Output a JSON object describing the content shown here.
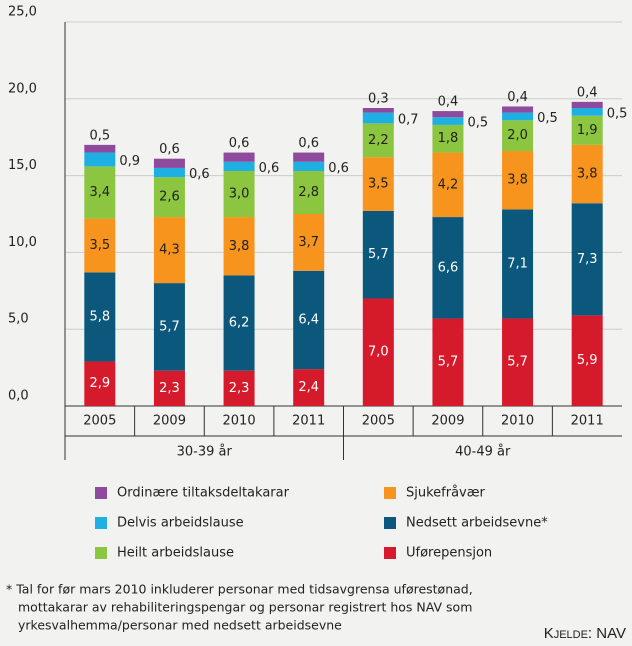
{
  "chart_data": {
    "type": "stacked_bar",
    "categories": [
      "2005",
      "2009",
      "2010",
      "2011",
      "2005",
      "2009",
      "2010",
      "2011"
    ],
    "groups": [
      "30-39 år",
      "40-49 år"
    ],
    "series": [
      {
        "name": "Uførepensjon",
        "color": "#d51a2b",
        "values": [
          2.9,
          2.3,
          2.3,
          2.4,
          7.0,
          5.7,
          5.7,
          5.9
        ],
        "value_labels": [
          "2,9",
          "2,3",
          "2,3",
          "2,4",
          "7,0",
          "5,7",
          "5,7",
          "5,9"
        ]
      },
      {
        "name": "Nedsett arbeidsevne*",
        "color": "#0b587c",
        "values": [
          5.8,
          5.7,
          6.2,
          6.4,
          5.7,
          6.6,
          7.1,
          7.3
        ],
        "value_labels": [
          "5,8",
          "5,7",
          "6,2",
          "6,4",
          "5,7",
          "6,6",
          "7,1",
          "7,3"
        ]
      },
      {
        "name": "Sjukefråvær",
        "color": "#f7941d",
        "values": [
          3.5,
          4.3,
          3.8,
          3.7,
          3.5,
          4.2,
          3.8,
          3.8
        ],
        "value_labels": [
          "3,5",
          "4,3",
          "3,8",
          "3,7",
          "3,5",
          "4,2",
          "3,8",
          "3,8"
        ]
      },
      {
        "name": "Heilt arbeidslause",
        "color": "#8cc540",
        "values": [
          3.4,
          2.6,
          3.0,
          2.8,
          2.2,
          1.8,
          2.0,
          1.9
        ],
        "value_labels": [
          "3,4",
          "2,6",
          "3,0",
          "2,8",
          "2,2",
          "1,8",
          "2,0",
          "1,9"
        ]
      },
      {
        "name": "Delvis arbeidslause",
        "color": "#1fb0e3",
        "values": [
          0.9,
          0.6,
          0.6,
          0.6,
          0.7,
          0.5,
          0.5,
          0.5
        ],
        "value_labels": [
          "0,9",
          "0,6",
          "0,6",
          "0,6",
          "0,7",
          "0,5",
          "0,5",
          "0,5"
        ]
      },
      {
        "name": "Ordinære tiltaksdeltakarar",
        "color": "#8e4a9d",
        "values": [
          0.5,
          0.6,
          0.6,
          0.6,
          0.3,
          0.4,
          0.4,
          0.4
        ],
        "value_labels": [
          "0,5",
          "0,6",
          "0,6",
          "0,6",
          "0,3",
          "0,4",
          "0,4",
          "0,4"
        ]
      }
    ],
    "ylim": [
      0,
      25
    ],
    "yticks": [
      {
        "value": 0,
        "label": "0,0"
      },
      {
        "value": 5,
        "label": "5,0"
      },
      {
        "value": 10,
        "label": "10,0"
      },
      {
        "value": 15,
        "label": "15,0"
      },
      {
        "value": 20,
        "label": "20,0"
      },
      {
        "value": 25,
        "label": "25,0"
      }
    ],
    "grid": true,
    "footnote": [
      "* Tal for før mars 2010 inkluderer personar med tidsavgrensa uførestønad,",
      "mottakarar av rehabiliteringspengar og personar registrert hos NAV som",
      "yrkesvalhemma/personar med nedsett arbeidsevne"
    ],
    "source": "Kjelde: NAV"
  }
}
